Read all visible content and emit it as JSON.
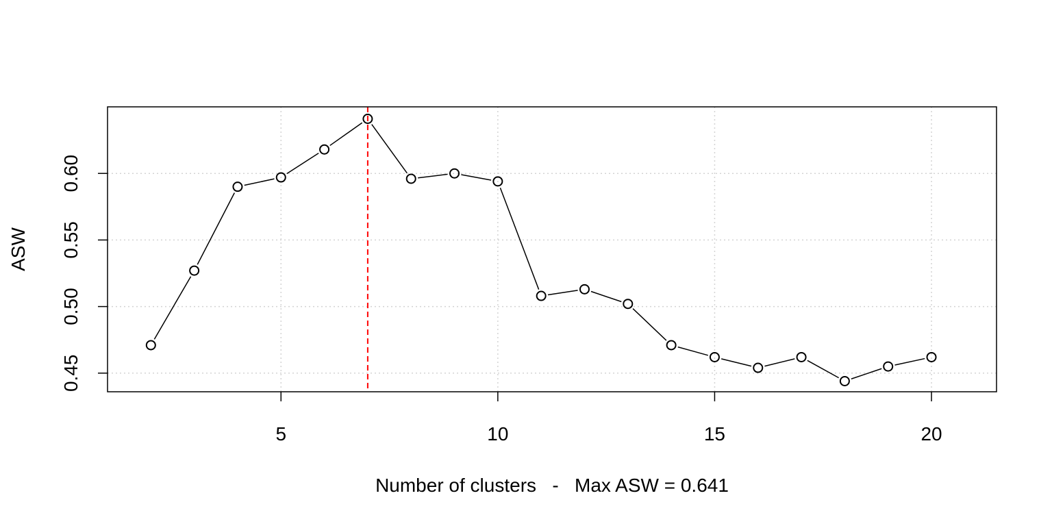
{
  "chart_data": {
    "type": "line",
    "title": "",
    "xlabel": "Number of clusters   -   Max ASW = 0.641",
    "ylabel": "ASW",
    "xlim": [
      1,
      21.5
    ],
    "ylim": [
      0.436,
      0.65
    ],
    "x_ticks": [
      5,
      10,
      15,
      20
    ],
    "y_ticks": [
      0.45,
      0.5,
      0.55,
      0.6
    ],
    "x_tick_labels": [
      "5",
      "10",
      "15",
      "20"
    ],
    "y_tick_labels": [
      "0.45",
      "0.50",
      "0.55",
      "0.60"
    ],
    "grid": true,
    "grid_x": [
      5,
      10,
      15,
      20
    ],
    "grid_y": [
      0.45,
      0.5,
      0.55,
      0.6
    ],
    "series": [
      {
        "x": [
          2,
          3,
          4,
          5,
          6,
          7,
          8,
          9,
          10,
          11,
          12,
          13,
          14,
          15,
          16,
          17,
          18,
          19,
          20
        ],
        "y": [
          0.471,
          0.527,
          0.59,
          0.597,
          0.618,
          0.641,
          0.596,
          0.6,
          0.594,
          0.508,
          0.513,
          0.502,
          0.471,
          0.462,
          0.454,
          0.462,
          0.444,
          0.455,
          0.462
        ],
        "color": "#000000",
        "marker": "open-circle"
      }
    ],
    "reference_line": {
      "x": 7,
      "color": "#ff0000",
      "style": "dashed"
    }
  }
}
